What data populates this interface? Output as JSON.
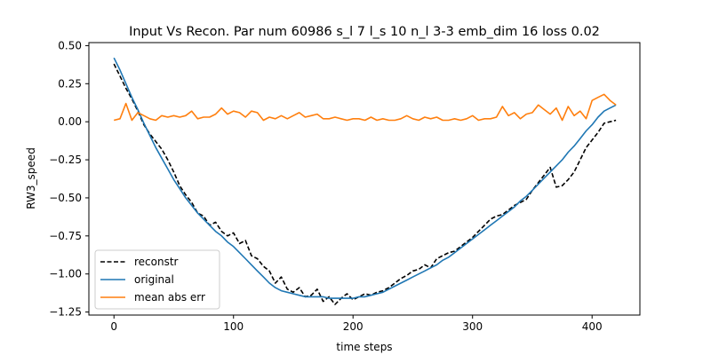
{
  "chart_data": {
    "type": "line",
    "title": "Input Vs Recon. Par num 60986 s_l 7 l_s 10 n_l 3-3 emb_dim 16 loss 0.02",
    "xlabel": "time steps",
    "ylabel": "RW3_speed",
    "xlim": [
      -21,
      440
    ],
    "ylim": [
      -1.27,
      0.52
    ],
    "xticks": [
      0,
      100,
      200,
      300,
      400
    ],
    "yticks": [
      -1.25,
      -1.0,
      -0.75,
      -0.5,
      -0.25,
      0.0,
      0.25,
      0.5
    ],
    "ytick_labels": [
      "−1.25",
      "−1.00",
      "−0.75",
      "−0.50",
      "−0.25",
      "0.00",
      "0.25",
      "0.50"
    ],
    "grid": false,
    "legend_position": "lower-left",
    "series": [
      {
        "name": "reconstr",
        "color": "#000000",
        "style": "dashed",
        "x": [
          0,
          5,
          10,
          15,
          20,
          25,
          30,
          35,
          40,
          45,
          50,
          55,
          60,
          65,
          70,
          75,
          80,
          85,
          90,
          95,
          100,
          105,
          110,
          115,
          120,
          125,
          130,
          135,
          140,
          145,
          150,
          155,
          160,
          165,
          170,
          175,
          180,
          185,
          190,
          195,
          200,
          205,
          210,
          215,
          220,
          225,
          230,
          235,
          240,
          245,
          250,
          255,
          260,
          265,
          270,
          275,
          280,
          285,
          290,
          295,
          300,
          305,
          310,
          315,
          320,
          325,
          330,
          335,
          340,
          345,
          350,
          355,
          360,
          365,
          370,
          375,
          380,
          385,
          390,
          395,
          400,
          405,
          410,
          415,
          420
        ],
        "y": [
          0.38,
          0.3,
          0.22,
          0.15,
          0.07,
          -0.02,
          -0.08,
          -0.13,
          -0.18,
          -0.25,
          -0.33,
          -0.42,
          -0.48,
          -0.53,
          -0.6,
          -0.62,
          -0.68,
          -0.66,
          -0.72,
          -0.75,
          -0.73,
          -0.8,
          -0.78,
          -0.88,
          -0.9,
          -0.95,
          -0.98,
          -1.06,
          -1.02,
          -1.1,
          -1.12,
          -1.09,
          -1.15,
          -1.14,
          -1.1,
          -1.18,
          -1.15,
          -1.2,
          -1.16,
          -1.13,
          -1.17,
          -1.15,
          -1.13,
          -1.14,
          -1.12,
          -1.11,
          -1.09,
          -1.06,
          -1.03,
          -1.01,
          -0.98,
          -0.97,
          -0.94,
          -0.96,
          -0.9,
          -0.88,
          -0.86,
          -0.85,
          -0.82,
          -0.79,
          -0.76,
          -0.72,
          -0.68,
          -0.64,
          -0.62,
          -0.61,
          -0.58,
          -0.55,
          -0.53,
          -0.51,
          -0.45,
          -0.4,
          -0.35,
          -0.3,
          -0.43,
          -0.42,
          -0.38,
          -0.33,
          -0.25,
          -0.17,
          -0.12,
          -0.07,
          -0.01,
          0.0,
          0.01
        ]
      },
      {
        "name": "original",
        "color": "#1f77b4",
        "style": "solid",
        "x": [
          0,
          5,
          10,
          15,
          20,
          25,
          30,
          35,
          40,
          45,
          50,
          55,
          60,
          65,
          70,
          75,
          80,
          85,
          90,
          95,
          100,
          105,
          110,
          115,
          120,
          125,
          130,
          135,
          140,
          145,
          150,
          155,
          160,
          165,
          170,
          175,
          180,
          185,
          190,
          195,
          200,
          205,
          210,
          215,
          220,
          225,
          230,
          235,
          240,
          245,
          250,
          255,
          260,
          265,
          270,
          275,
          280,
          285,
          290,
          295,
          300,
          305,
          310,
          315,
          320,
          325,
          330,
          335,
          340,
          345,
          350,
          355,
          360,
          365,
          370,
          375,
          380,
          385,
          390,
          395,
          400,
          405,
          410,
          415,
          420
        ],
        "y": [
          0.42,
          0.34,
          0.25,
          0.16,
          0.08,
          -0.01,
          -0.09,
          -0.17,
          -0.24,
          -0.31,
          -0.38,
          -0.44,
          -0.5,
          -0.55,
          -0.6,
          -0.64,
          -0.68,
          -0.72,
          -0.75,
          -0.79,
          -0.82,
          -0.86,
          -0.9,
          -0.94,
          -0.98,
          -1.02,
          -1.06,
          -1.09,
          -1.11,
          -1.12,
          -1.13,
          -1.14,
          -1.15,
          -1.15,
          -1.15,
          -1.15,
          -1.16,
          -1.16,
          -1.16,
          -1.16,
          -1.16,
          -1.15,
          -1.15,
          -1.14,
          -1.13,
          -1.12,
          -1.1,
          -1.08,
          -1.06,
          -1.04,
          -1.02,
          -1.0,
          -0.98,
          -0.96,
          -0.94,
          -0.91,
          -0.89,
          -0.86,
          -0.83,
          -0.8,
          -0.77,
          -0.74,
          -0.71,
          -0.68,
          -0.65,
          -0.62,
          -0.59,
          -0.56,
          -0.52,
          -0.49,
          -0.45,
          -0.41,
          -0.37,
          -0.33,
          -0.29,
          -0.25,
          -0.2,
          -0.16,
          -0.11,
          -0.06,
          -0.02,
          0.03,
          0.07,
          0.09,
          0.11
        ]
      },
      {
        "name": "mean abs err",
        "color": "#ff7f0e",
        "style": "solid",
        "x": [
          0,
          5,
          10,
          15,
          20,
          25,
          30,
          35,
          40,
          45,
          50,
          55,
          60,
          65,
          70,
          75,
          80,
          85,
          90,
          95,
          100,
          105,
          110,
          115,
          120,
          125,
          130,
          135,
          140,
          145,
          150,
          155,
          160,
          165,
          170,
          175,
          180,
          185,
          190,
          195,
          200,
          205,
          210,
          215,
          220,
          225,
          230,
          235,
          240,
          245,
          250,
          255,
          260,
          265,
          270,
          275,
          280,
          285,
          290,
          295,
          300,
          305,
          310,
          315,
          320,
          325,
          330,
          335,
          340,
          345,
          350,
          355,
          360,
          365,
          370,
          375,
          380,
          385,
          390,
          395,
          400,
          405,
          410,
          415,
          420
        ],
        "y": [
          0.01,
          0.02,
          0.12,
          0.01,
          0.06,
          0.04,
          0.02,
          0.01,
          0.04,
          0.03,
          0.04,
          0.03,
          0.04,
          0.07,
          0.02,
          0.03,
          0.03,
          0.05,
          0.09,
          0.05,
          0.07,
          0.06,
          0.03,
          0.07,
          0.06,
          0.01,
          0.03,
          0.02,
          0.04,
          0.02,
          0.04,
          0.06,
          0.03,
          0.04,
          0.05,
          0.02,
          0.02,
          0.03,
          0.02,
          0.01,
          0.02,
          0.02,
          0.01,
          0.03,
          0.01,
          0.02,
          0.01,
          0.01,
          0.02,
          0.04,
          0.02,
          0.01,
          0.03,
          0.02,
          0.03,
          0.01,
          0.01,
          0.02,
          0.01,
          0.02,
          0.04,
          0.01,
          0.02,
          0.02,
          0.03,
          0.1,
          0.04,
          0.06,
          0.02,
          0.05,
          0.06,
          0.11,
          0.08,
          0.05,
          0.09,
          0.01,
          0.1,
          0.04,
          0.07,
          0.02,
          0.14,
          0.16,
          0.18,
          0.14,
          0.11
        ]
      }
    ]
  }
}
